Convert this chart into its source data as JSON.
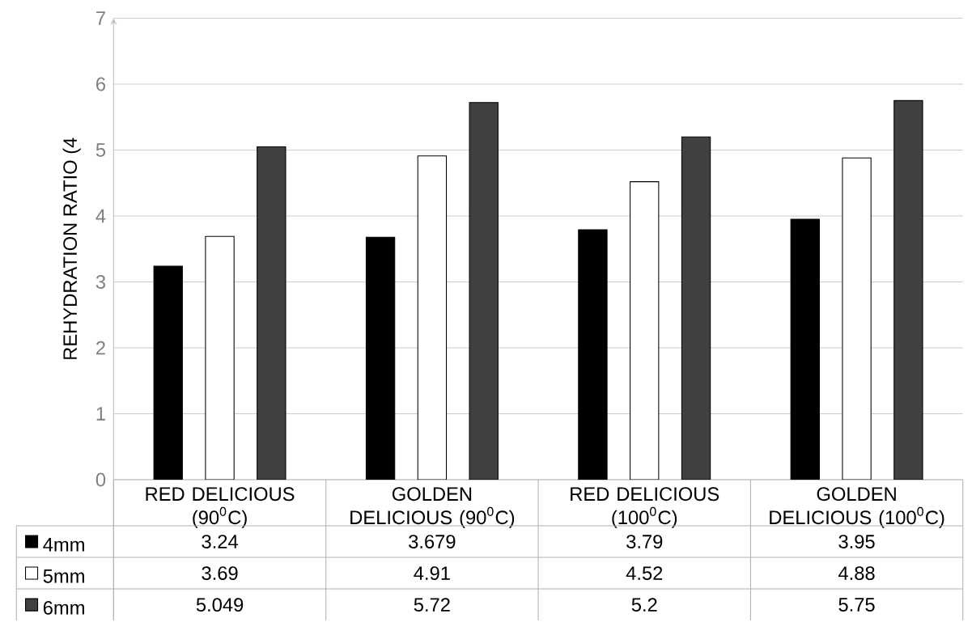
{
  "chart_data": {
    "type": "bar",
    "ylabel": "REHYDRATION RATIO (4",
    "categories": [
      "RED DELICIOUS (90$^{0}$C)",
      "GOLDEN DELICIOUS (90$^{0}$C)",
      "RED DELICIOUS (100$^{0}$C)",
      "GOLDEN DELICIOUS (100$^{0}$C)"
    ],
    "series": [
      {
        "name": "4mm",
        "color": "#000000",
        "values": [
          3.24,
          3.679,
          3.79,
          3.95
        ]
      },
      {
        "name": "5mm",
        "color": "#ffffff",
        "values": [
          3.69,
          4.91,
          4.52,
          4.88
        ]
      },
      {
        "name": "6mm",
        "color": "#404040",
        "values": [
          5.049,
          5.72,
          5.2,
          5.75
        ]
      }
    ],
    "ylim": [
      0,
      7
    ],
    "yticks": [
      0,
      1,
      2,
      3,
      4,
      5,
      6,
      7
    ],
    "grid": "y",
    "legend": "bottom left",
    "data_labels": true
  }
}
